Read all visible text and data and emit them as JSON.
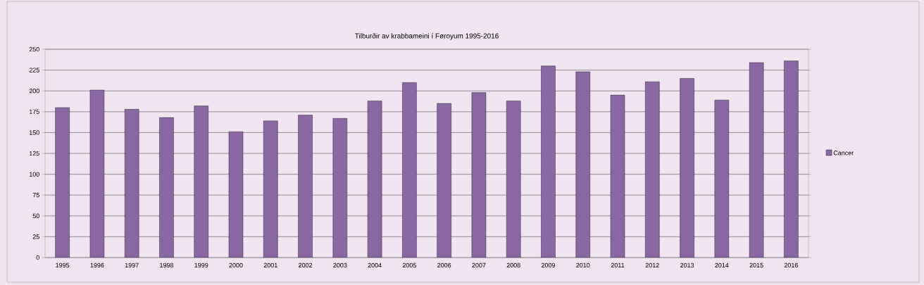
{
  "chart_data": {
    "type": "bar",
    "title": "Tilburðir  av  krabbameini  í Føroyum 1995-2016",
    "categories": [
      "1995",
      "1996",
      "1997",
      "1998",
      "1999",
      "2000",
      "2001",
      "2002",
      "2003",
      "2004",
      "2005",
      "2006",
      "2007",
      "2008",
      "2009",
      "2010",
      "2011",
      "2012",
      "2013",
      "2014",
      "2015",
      "2016"
    ],
    "series": [
      {
        "name": "Cancer",
        "color": "#8968a3",
        "values": [
          180,
          201,
          178,
          168,
          182,
          151,
          164,
          171,
          167,
          188,
          210,
          185,
          198,
          188,
          230,
          223,
          195,
          211,
          215,
          189,
          234,
          236
        ]
      }
    ],
    "ylim": [
      0,
      250
    ],
    "yticks": [
      0,
      25,
      50,
      75,
      100,
      125,
      150,
      175,
      200,
      225,
      250
    ],
    "grid": "y",
    "legend": "right"
  }
}
